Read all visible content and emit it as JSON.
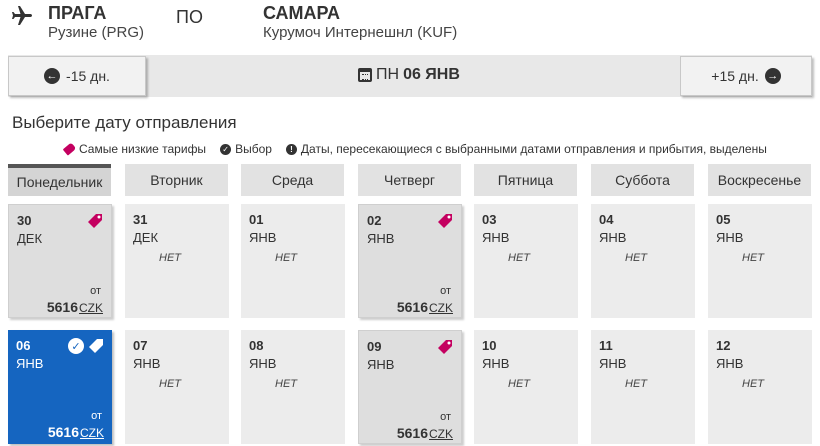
{
  "route": {
    "origin_city": "ПРАГА",
    "origin_airport": "Рузине (PRG)",
    "separator": "ПО",
    "dest_city": "САМАРА",
    "dest_airport": "Курумоч Интернешнл (KUF)"
  },
  "nav": {
    "prev_label": "-15 дн.",
    "next_label": "+15 дн.",
    "current_weekday": "ПН",
    "current_date": "06 ЯНВ"
  },
  "section_title": "Выберите дату отправления",
  "legend": {
    "lowest": "Самые низкие тарифы",
    "selected": "Выбор",
    "overlap": "Даты, пересекающиеся с выбранными датами отправления и прибытия, выделены"
  },
  "weekdays": [
    "Понедельник",
    "Вторник",
    "Среда",
    "Четверг",
    "Пятница",
    "Суббота",
    "Воскресенье"
  ],
  "colors": {
    "accent": "#1565c0",
    "tag": "#c40060"
  },
  "calendar": [
    [
      {
        "day": "30",
        "month": "ДЕК",
        "price": "5616",
        "currency": "CZK",
        "from": "от",
        "lowest": true
      },
      {
        "day": "31",
        "month": "ДЕК",
        "none": "НЕТ"
      },
      {
        "day": "01",
        "month": "ЯНВ",
        "none": "НЕТ"
      },
      {
        "day": "02",
        "month": "ЯНВ",
        "price": "5616",
        "currency": "CZK",
        "from": "от",
        "lowest": true
      },
      {
        "day": "03",
        "month": "ЯНВ",
        "none": "НЕТ"
      },
      {
        "day": "04",
        "month": "ЯНВ",
        "none": "НЕТ"
      },
      {
        "day": "05",
        "month": "ЯНВ",
        "none": "НЕТ"
      }
    ],
    [
      {
        "day": "06",
        "month": "ЯНВ",
        "price": "5616",
        "currency": "CZK",
        "from": "от",
        "lowest": true,
        "selected": true
      },
      {
        "day": "07",
        "month": "ЯНВ",
        "none": "НЕТ"
      },
      {
        "day": "08",
        "month": "ЯНВ",
        "none": "НЕТ"
      },
      {
        "day": "09",
        "month": "ЯНВ",
        "price": "5616",
        "currency": "CZK",
        "from": "от",
        "lowest": true
      },
      {
        "day": "10",
        "month": "ЯНВ",
        "none": "НЕТ"
      },
      {
        "day": "11",
        "month": "ЯНВ",
        "none": "НЕТ"
      },
      {
        "day": "12",
        "month": "ЯНВ",
        "none": "НЕТ"
      }
    ]
  ]
}
